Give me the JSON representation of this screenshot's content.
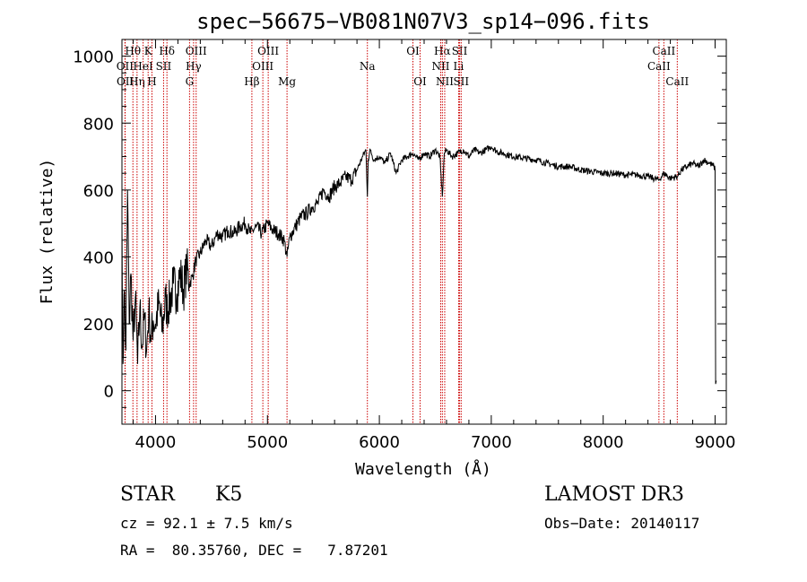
{
  "chart_data": {
    "type": "line",
    "title": "spec−56675−VB081N07V3_sp14−096.fits",
    "xlabel": "Wavelength (Å)",
    "ylabel": "Flux (relative)",
    "xlim": [
      3700,
      9100
    ],
    "ylim": [
      -100,
      1050
    ],
    "x_ticks": [
      4000,
      5000,
      6000,
      7000,
      8000,
      9000
    ],
    "y_ticks": [
      0,
      200,
      400,
      600,
      800,
      1000
    ],
    "series": [
      {
        "name": "spectrum",
        "x": [
          3700,
          3710,
          3720,
          3735,
          3750,
          3765,
          3780,
          3800,
          3820,
          3840,
          3860,
          3880,
          3900,
          3920,
          3940,
          3960,
          3980,
          4000,
          4030,
          4060,
          4090,
          4100,
          4130,
          4160,
          4190,
          4220,
          4250,
          4280,
          4300,
          4330,
          4360,
          4400,
          4450,
          4500,
          4550,
          4600,
          4650,
          4700,
          4750,
          4800,
          4850,
          4870,
          4900,
          4950,
          5000,
          5050,
          5100,
          5150,
          5175,
          5200,
          5250,
          5300,
          5350,
          5400,
          5450,
          5500,
          5550,
          5600,
          5650,
          5700,
          5750,
          5800,
          5850,
          5880,
          5893,
          5900,
          5920,
          5950,
          6000,
          6050,
          6100,
          6150,
          6200,
          6250,
          6300,
          6350,
          6400,
          6450,
          6500,
          6540,
          6563,
          6580,
          6600,
          6650,
          6700,
          6750,
          6800,
          6850,
          6900,
          6950,
          7000,
          7050,
          7100,
          7200,
          7300,
          7400,
          7500,
          7600,
          7700,
          7800,
          7900,
          8000,
          8100,
          8200,
          8300,
          8400,
          8498,
          8542,
          8600,
          8662,
          8700,
          8750,
          8800,
          8850,
          8900,
          8950,
          8990,
          9000,
          9005,
          9010
        ],
        "flux": [
          520,
          80,
          300,
          120,
          600,
          200,
          350,
          150,
          280,
          80,
          250,
          130,
          220,
          120,
          240,
          150,
          210,
          200,
          260,
          180,
          280,
          240,
          270,
          320,
          290,
          350,
          300,
          370,
          320,
          340,
          390,
          410,
          450,
          430,
          470,
          460,
          480,
          470,
          490,
          500,
          470,
          480,
          490,
          470,
          500,
          480,
          470,
          450,
          400,
          460,
          490,
          520,
          530,
          550,
          560,
          600,
          580,
          610,
          620,
          640,
          630,
          660,
          700,
          720,
          580,
          690,
          720,
          690,
          700,
          680,
          710,
          650,
          690,
          700,
          710,
          690,
          710,
          700,
          720,
          700,
          580,
          710,
          720,
          700,
          710,
          720,
          700,
          720,
          710,
          720,
          730,
          715,
          710,
          700,
          695,
          690,
          680,
          670,
          670,
          660,
          655,
          650,
          650,
          645,
          645,
          640,
          630,
          650,
          635,
          640,
          660,
          670,
          680,
          670,
          690,
          680,
          670,
          660,
          20,
          420,
          30
        ]
      }
    ],
    "spectral_lines": [
      {
        "label": "Hθ",
        "wavelength": 3798,
        "row": 0
      },
      {
        "label": "OII",
        "wavelength": 3727,
        "row": 1
      },
      {
        "label": "OII",
        "wavelength": 3729,
        "row": 2
      },
      {
        "label": "Hη",
        "wavelength": 3835,
        "row": 2
      },
      {
        "label": "K",
        "wavelength": 3934,
        "row": 0
      },
      {
        "label": "HeI",
        "wavelength": 3889,
        "row": 1
      },
      {
        "label": "H",
        "wavelength": 3968,
        "row": 2
      },
      {
        "label": "Hδ",
        "wavelength": 4102,
        "row": 0
      },
      {
        "label": "SII",
        "wavelength": 4072,
        "row": 1
      },
      {
        "label": "OIII",
        "wavelength": 4363,
        "row": 0
      },
      {
        "label": "Hγ",
        "wavelength": 4340,
        "row": 1
      },
      {
        "label": "G",
        "wavelength": 4304,
        "row": 2
      },
      {
        "label": "Hβ",
        "wavelength": 4861,
        "row": 2
      },
      {
        "label": "OIII",
        "wavelength": 5007,
        "row": 0
      },
      {
        "label": "OIII",
        "wavelength": 4959,
        "row": 1
      },
      {
        "label": "Mg",
        "wavelength": 5175,
        "row": 2
      },
      {
        "label": "Na",
        "wavelength": 5893,
        "row": 1
      },
      {
        "label": "OI",
        "wavelength": 6300,
        "row": 0
      },
      {
        "label": "OI",
        "wavelength": 6364,
        "row": 2
      },
      {
        "label": "Hα",
        "wavelength": 6563,
        "row": 0
      },
      {
        "label": "SII",
        "wavelength": 6717,
        "row": 0
      },
      {
        "label": "NII",
        "wavelength": 6548,
        "row": 1
      },
      {
        "label": "Li",
        "wavelength": 6708,
        "row": 1
      },
      {
        "label": "NII",
        "wavelength": 6584,
        "row": 2
      },
      {
        "label": "SII",
        "wavelength": 6731,
        "row": 2
      },
      {
        "label": "CaII",
        "wavelength": 8542,
        "row": 0
      },
      {
        "label": "CaII",
        "wavelength": 8498,
        "row": 1
      },
      {
        "label": "CaII",
        "wavelength": 8662,
        "row": 2
      }
    ]
  },
  "info": {
    "object_class": "STAR",
    "subclass": "K5",
    "survey": "LAMOST DR3",
    "redshift_line": "cz = 92.1 ± 7.5 km/s",
    "obs_date_line": "Obs−Date: 20140117",
    "coords_line": "RA =  80.35760, DEC =   7.87201"
  },
  "colors": {
    "axis": "#000000",
    "spectrum": "#000000",
    "line_marker": "#cc0000"
  }
}
